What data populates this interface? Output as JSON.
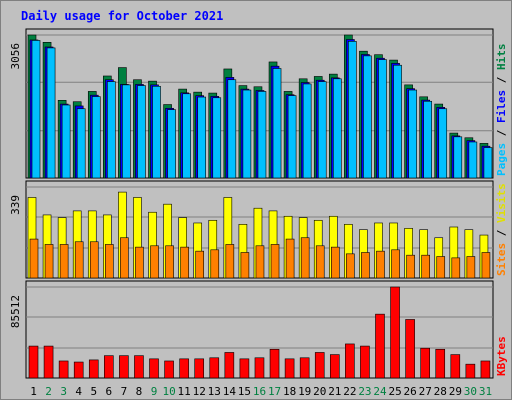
{
  "chart_data": {
    "type": "bar",
    "title": "Daily usage for October 2021",
    "categories": [
      "1",
      "2",
      "3",
      "4",
      "5",
      "6",
      "7",
      "8",
      "9",
      "10",
      "11",
      "12",
      "13",
      "14",
      "15",
      "16",
      "17",
      "18",
      "19",
      "20",
      "21",
      "22",
      "23",
      "24",
      "25",
      "26",
      "27",
      "28",
      "29",
      "30",
      "31"
    ],
    "weekend_days": [
      "2",
      "3",
      "9",
      "10",
      "16",
      "17",
      "23",
      "24",
      "30",
      "31"
    ],
    "panels": [
      {
        "id": "hits-files-pages",
        "y_max_label": "3056",
        "ylim": [
          0,
          3056
        ],
        "right_label_parts": [
          {
            "text": "Pages",
            "color": "#00c0ff"
          },
          {
            "text": " / ",
            "color": "#000000"
          },
          {
            "text": "Files",
            "color": "#0000ff"
          },
          {
            "text": " / ",
            "color": "#000000"
          },
          {
            "text": "Hits",
            "color": "#008040"
          }
        ],
        "series": [
          {
            "name": "Hits",
            "color": "#008040",
            "values": [
              3056,
              2900,
              1660,
              1630,
              1850,
              2180,
              2360,
              2100,
              2070,
              1570,
              1900,
              1835,
              1815,
              2330,
              1975,
              1950,
              2480,
              1850,
              2120,
              2170,
              2220,
              3056,
              2710,
              2635,
              2520,
              1990,
              1735,
              1580,
              960,
              860,
              740
            ]
          },
          {
            "name": "Files",
            "color": "#0000ff",
            "values": [
              2950,
              2800,
              1580,
              1540,
              1770,
              2100,
              2000,
              2000,
              1990,
              1490,
              1820,
              1760,
              1745,
              2150,
              1900,
              1870,
              2390,
              1780,
              2040,
              2090,
              2140,
              2960,
              2640,
              2560,
              2450,
              1910,
              1665,
              1510,
              900,
              800,
              680
            ]
          },
          {
            "name": "Pages",
            "color": "#00c0ff",
            "values": [
              2940,
              2780,
              1560,
              1480,
              1740,
              2060,
              1990,
              1975,
              1960,
              1460,
              1800,
              1730,
              1715,
              2100,
              1880,
              1850,
              2340,
              1760,
              2010,
              2060,
              2120,
              2920,
              2610,
              2530,
              2410,
              1880,
              1640,
              1480,
              880,
              770,
              650
            ]
          }
        ]
      },
      {
        "id": "visits-sites",
        "y_max_label": "339",
        "ylim": [
          0,
          339
        ],
        "right_label_parts": [
          {
            "text": "Sites",
            "color": "#ff8000"
          },
          {
            "text": " / ",
            "color": "#000000"
          },
          {
            "text": "Visits",
            "color": "#e0e000"
          }
        ],
        "series": [
          {
            "name": "Visits",
            "color": "#ffff00",
            "values": [
              300,
              235,
              225,
              250,
              250,
              235,
              320,
              300,
              245,
              275,
              225,
              205,
              215,
              300,
              200,
              260,
              250,
              230,
              225,
              215,
              230,
              200,
              180,
              205,
              205,
              185,
              180,
              150,
              190,
              180,
              160
            ]
          },
          {
            "name": "Sites",
            "color": "#ff8000",
            "values": [
              145,
              125,
              125,
              135,
              135,
              125,
              150,
              115,
              120,
              120,
              115,
              100,
              105,
              125,
              95,
              120,
              125,
              145,
              150,
              120,
              115,
              90,
              95,
              100,
              105,
              85,
              85,
              80,
              75,
              80,
              95
            ]
          }
        ]
      },
      {
        "id": "kbytes",
        "y_max_label": "85512",
        "ylim": [
          0,
          85512
        ],
        "right_label_parts": [
          {
            "text": "KBytes",
            "color": "#ff0000"
          }
        ],
        "series": [
          {
            "name": "KBytes",
            "color": "#ff0000",
            "values": [
              30000,
              30000,
              16000,
              15000,
              17000,
              21000,
              21000,
              21000,
              18000,
              16000,
              18000,
              18000,
              19000,
              24000,
              18000,
              19000,
              27000,
              18000,
              19000,
              24000,
              22000,
              32000,
              30000,
              60000,
              85512,
              55000,
              28000,
              27000,
              22000,
              13000,
              16000
            ]
          }
        ]
      }
    ]
  }
}
